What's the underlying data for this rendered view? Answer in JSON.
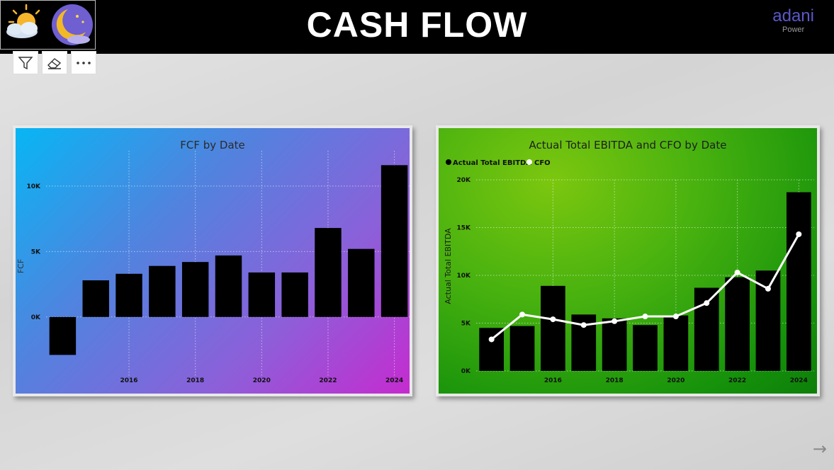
{
  "header": {
    "title": "CASH FLOW",
    "brand_name": "adani",
    "brand_sub": "Power"
  },
  "toolbar": {
    "icons": [
      "filter-icon",
      "eraser-icon",
      "more-options-icon"
    ]
  },
  "charts": {
    "fcf": {
      "title": "FCF by Date",
      "ylabel": "FCF",
      "yticks": [
        "0K",
        "5K",
        "10K"
      ],
      "xticks": [
        "2016",
        "2018",
        "2020",
        "2022",
        "2024"
      ]
    },
    "ebitda": {
      "title": "Actual Total EBITDA and CFO by Date",
      "ylabel": "Actual Total EBITDA",
      "legend": [
        "Actual Total EBITDA",
        "CFO"
      ],
      "yticks": [
        "0K",
        "5K",
        "10K",
        "15K",
        "20K"
      ],
      "xticks": [
        "2016",
        "2018",
        "2020",
        "2022",
        "2024"
      ]
    }
  },
  "colors": {
    "bar": "#000000",
    "line": "#ffffff",
    "header": "#000000",
    "brand": "#5a58c8"
  },
  "chart_data": [
    {
      "type": "bar",
      "title": "FCF by Date",
      "xlabel": "",
      "ylabel": "FCF",
      "categories": [
        2014,
        2015,
        2016,
        2017,
        2018,
        2019,
        2020,
        2021,
        2022,
        2023,
        2024
      ],
      "values": [
        -2900,
        2800,
        3300,
        3900,
        4200,
        4700,
        3400,
        3400,
        6800,
        5200,
        11600
      ],
      "ylim": [
        -4500,
        12700
      ],
      "grid": true
    },
    {
      "type": "bar",
      "title": "Actual Total EBITDA and CFO by Date",
      "xlabel": "",
      "ylabel": "Actual Total EBITDA",
      "categories": [
        2014,
        2015,
        2016,
        2017,
        2018,
        2019,
        2020,
        2021,
        2022,
        2023,
        2024
      ],
      "series": [
        {
          "name": "Actual Total EBITDA",
          "type": "bar",
          "values": [
            4500,
            4700,
            8900,
            5900,
            5500,
            4800,
            5800,
            8700,
            9800,
            10500,
            18700
          ]
        },
        {
          "name": "CFO",
          "type": "line",
          "values": [
            3300,
            5900,
            5400,
            4800,
            5200,
            5700,
            5700,
            7100,
            10300,
            8600,
            14300
          ]
        }
      ],
      "ylim": [
        0,
        20000
      ],
      "legend": "top-left",
      "grid": true
    }
  ]
}
